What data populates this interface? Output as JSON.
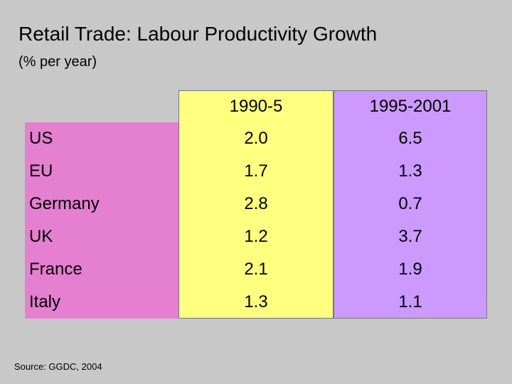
{
  "title": "Retail Trade: Labour Productivity Growth",
  "subtitle": "(% per year)",
  "source": "Source:  GGDC, 2004",
  "colors": {
    "label_bg": "#e57fd0",
    "col1_bg": "#ffff80",
    "col2_bg": "#cc99ff",
    "page_bg": "#c8c8c8"
  },
  "chart_data": {
    "type": "table",
    "title": "Retail Trade: Labour Productivity Growth",
    "subtitle": "(% per year)",
    "columns": [
      "1990-5",
      "1995-2001"
    ],
    "rows": [
      {
        "label": "US",
        "values": [
          "2.0",
          "6.5"
        ]
      },
      {
        "label": "EU",
        "values": [
          "1.7",
          "1.3"
        ]
      },
      {
        "label": "Germany",
        "values": [
          "2.8",
          "0.7"
        ]
      },
      {
        "label": "UK",
        "values": [
          "1.2",
          "3.7"
        ]
      },
      {
        "label": "France",
        "values": [
          "2.1",
          "1.9"
        ]
      },
      {
        "label": "Italy",
        "values": [
          "1.3",
          "1.1"
        ]
      }
    ]
  }
}
